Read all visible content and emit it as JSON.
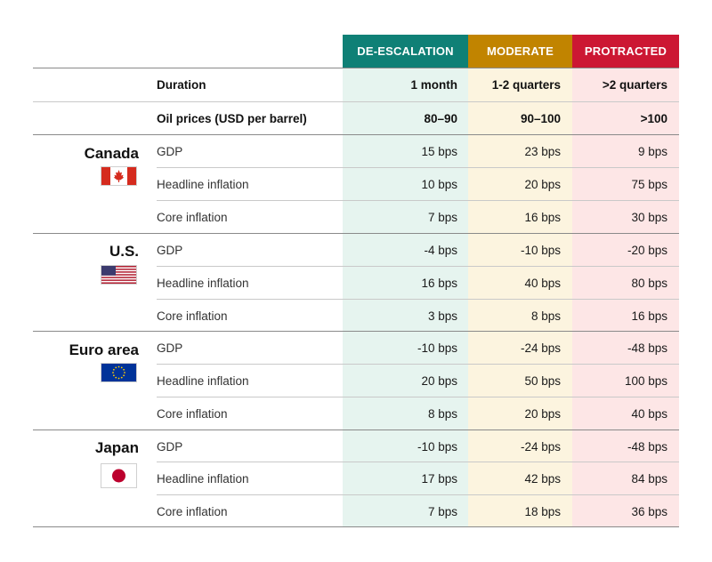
{
  "colors": {
    "de_escalation": "#0f8076",
    "moderate": "#c18400",
    "protracted": "#cc1733",
    "de_escalation_bg": "#e6f4ef",
    "moderate_bg": "#fcf4df",
    "protracted_bg": "#fde6e6"
  },
  "headers": {
    "de_escalation": "DE-ESCALATION",
    "moderate": "MODERATE",
    "protracted": "PROTRACTED"
  },
  "top_rows": [
    {
      "label": "Duration",
      "values": [
        "1 month",
        "1-2 quarters",
        ">2 quarters"
      ]
    },
    {
      "label": "Oil prices (USD per barrel)",
      "values": [
        "80–90",
        "90–100",
        ">100"
      ]
    }
  ],
  "groups": [
    {
      "country": "Canada",
      "flag_icon": "canada-flag-icon",
      "rows": [
        {
          "label": "GDP",
          "values": [
            "15 bps",
            "23 bps",
            "9 bps"
          ]
        },
        {
          "label": "Headline inflation",
          "values": [
            "10 bps",
            "20 bps",
            "75 bps"
          ]
        },
        {
          "label": "Core inflation",
          "values": [
            "7 bps",
            "16 bps",
            "30 bps"
          ]
        }
      ]
    },
    {
      "country": "U.S.",
      "flag_icon": "us-flag-icon",
      "rows": [
        {
          "label": "GDP",
          "values": [
            "-4 bps",
            "-10 bps",
            "-20 bps"
          ]
        },
        {
          "label": "Headline inflation",
          "values": [
            "16 bps",
            "40 bps",
            "80 bps"
          ]
        },
        {
          "label": "Core inflation",
          "values": [
            "3 bps",
            "8 bps",
            "16 bps"
          ]
        }
      ]
    },
    {
      "country": "Euro area",
      "flag_icon": "eu-flag-icon",
      "rows": [
        {
          "label": "GDP",
          "values": [
            "-10 bps",
            "-24 bps",
            "-48 bps"
          ]
        },
        {
          "label": "Headline inflation",
          "values": [
            "20 bps",
            "50 bps",
            "100 bps"
          ]
        },
        {
          "label": "Core inflation",
          "values": [
            "8 bps",
            "20 bps",
            "40 bps"
          ]
        }
      ]
    },
    {
      "country": "Japan",
      "flag_icon": "japan-flag-icon",
      "rows": [
        {
          "label": "GDP",
          "values": [
            "-10 bps",
            "-24 bps",
            "-48 bps"
          ]
        },
        {
          "label": "Headline inflation",
          "values": [
            "17 bps",
            "42 bps",
            "84 bps"
          ]
        },
        {
          "label": "Core inflation",
          "values": [
            "7 bps",
            "18 bps",
            "36 bps"
          ]
        }
      ]
    }
  ]
}
